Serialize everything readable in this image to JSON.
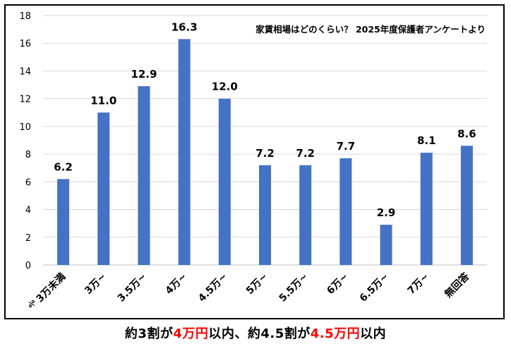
{
  "chart_data": {
    "type": "bar",
    "title": "家賃相場はどのくらい？ 2025年度保護者アンケートより",
    "ylabel": "%",
    "ylim": [
      0,
      18
    ],
    "yticks": [
      0,
      2,
      4,
      6,
      8,
      10,
      12,
      14,
      16,
      18
    ],
    "grid": true,
    "categories": [
      "3万未満",
      "3万~",
      "3.5万~",
      "4万~",
      "4.5万~",
      "5万~",
      "5.5万~",
      "6万~",
      "6.5万~",
      "7万~",
      "無回答"
    ],
    "values": [
      6.2,
      11.0,
      12.9,
      16.3,
      12.0,
      7.2,
      7.2,
      7.7,
      2.9,
      8.1,
      8.6
    ],
    "data_labels": [
      "6.2",
      "11.0",
      "12.9",
      "16.3",
      "12.0",
      "7.2",
      "7.2",
      "7.7",
      "2.9",
      "8.1",
      "8.6"
    ],
    "bar_color": "#4472c4"
  },
  "caption": {
    "part1": "約3割が",
    "highlight1": "4万円",
    "part2": "以内、約4.5割が",
    "highlight2": "4.5万円",
    "part3": "以内",
    "highlight_color": "#ff0000"
  }
}
